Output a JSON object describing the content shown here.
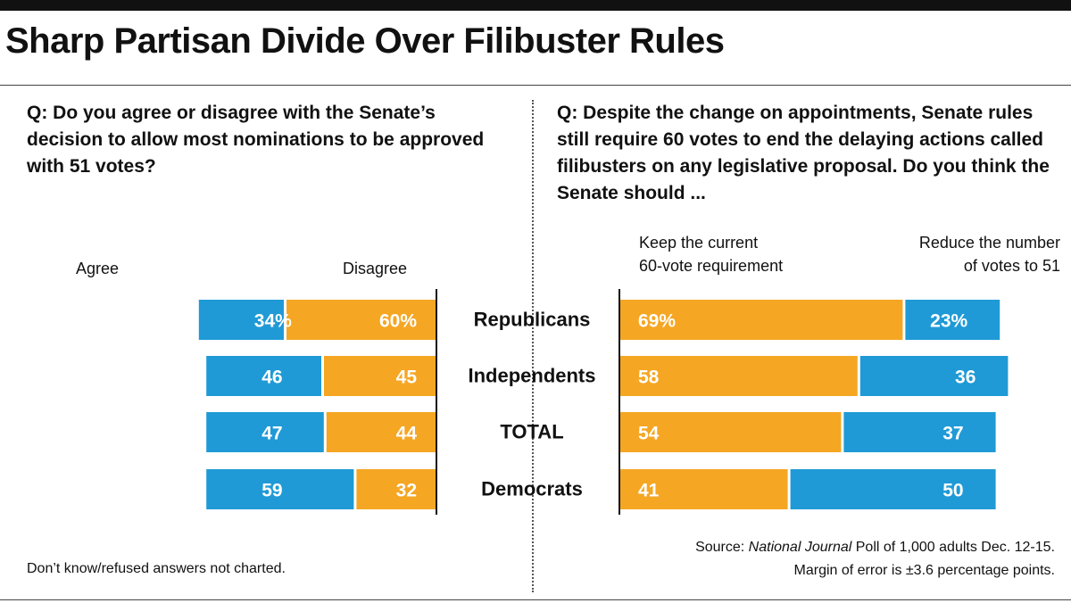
{
  "title": "Sharp Partisan Divide Over Filibuster Rules",
  "colors": {
    "agree": "#1f9ad6",
    "disagree": "#f5a623",
    "text": "#111111",
    "bar_text": "#ffffff"
  },
  "chart_data": [
    {
      "type": "bar",
      "orientation": "horizontal",
      "stacked": true,
      "question": "Q: Do you agree or disagree with the Senate’s decision to allow most nominations to be approved with 51 votes?",
      "categories": [
        "Republicans",
        "Independents",
        "TOTAL",
        "Democrats"
      ],
      "series": [
        {
          "name": "Agree",
          "values": [
            34,
            46,
            47,
            59
          ],
          "labels": [
            "34%",
            "46",
            "47",
            "59"
          ]
        },
        {
          "name": "Disagree",
          "values": [
            60,
            45,
            44,
            32
          ],
          "labels": [
            "60%",
            "45",
            "44",
            "32"
          ]
        }
      ],
      "xlim": [
        0,
        100
      ]
    },
    {
      "type": "bar",
      "orientation": "horizontal",
      "stacked": true,
      "question": "Q: Despite the change on appointments, Senate rules still require 60 votes to end the delaying actions called filibusters on any legislative proposal. Do you think the Senate should ...",
      "categories": [
        "Republicans",
        "Independents",
        "TOTAL",
        "Democrats"
      ],
      "series": [
        {
          "name": "Keep the current 60-vote requirement",
          "values": [
            69,
            58,
            54,
            41
          ],
          "labels": [
            "69%",
            "58",
            "54",
            "41"
          ]
        },
        {
          "name": "Reduce the number of votes to 51",
          "values": [
            23,
            36,
            37,
            50
          ],
          "labels": [
            "23%",
            "36",
            "37",
            "50"
          ]
        }
      ],
      "xlim": [
        0,
        100
      ]
    }
  ],
  "headers": {
    "agree": "Agree",
    "disagree": "Disagree",
    "keep_line1": "Keep the current",
    "keep_line2": "60-vote requirement",
    "reduce_line1": "Reduce the number",
    "reduce_line2": "of votes to 51"
  },
  "footnote": "Don’t know/refused answers not charted.",
  "source": {
    "prefix": "Source: ",
    "publication": "National Journal",
    "rest": " Poll of 1,000 adults Dec. 12-15.",
    "line2": "Margin of error is ±3.6 percentage points."
  }
}
